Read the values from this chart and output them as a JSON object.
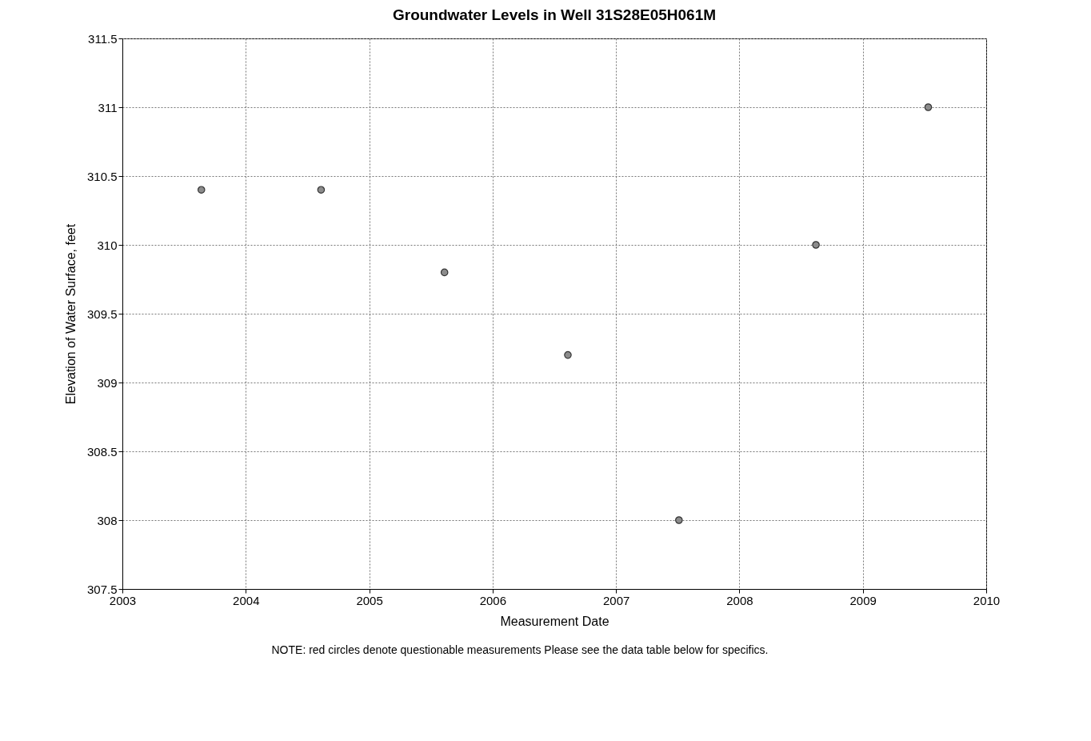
{
  "chart_data": {
    "type": "scatter",
    "title": "Groundwater Levels in Well 31S28E05H061M",
    "xlabel": "Measurement Date",
    "ylabel": "Elevation of Water Surface, feet",
    "x": [
      2003.64,
      2004.61,
      2005.61,
      2006.61,
      2007.51,
      2008.62,
      2009.53
    ],
    "series": [
      {
        "color": "#8c8c8c",
        "values": [
          310.4,
          310.4,
          309.8,
          309.2,
          308.0,
          310.0,
          311.0
        ]
      }
    ],
    "xlim": [
      2003,
      2010
    ],
    "xticks": [
      2003,
      2004,
      2005,
      2006,
      2007,
      2008,
      2009,
      2010
    ],
    "ylim": [
      307.5,
      311.5
    ],
    "yticks": [
      307.5,
      308,
      308.5,
      309,
      309.5,
      310,
      310.5,
      311,
      311.5
    ],
    "grid": true,
    "marker": "circle",
    "annotations": [
      "NOTE: red circles denote questionable measurements  Please see the data table below for specifics."
    ]
  }
}
